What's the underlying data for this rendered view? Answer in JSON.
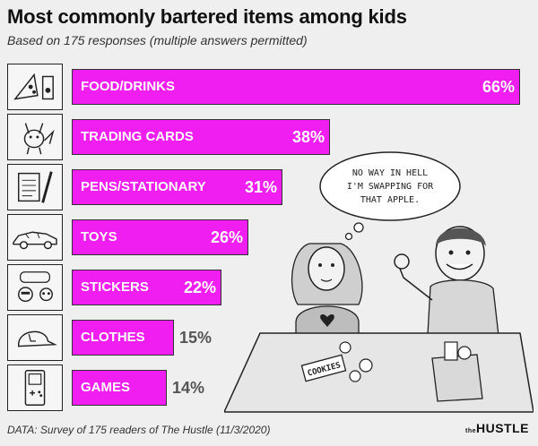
{
  "header": {
    "title": "Most commonly bartered items among kids",
    "subtitle": "Based on 175 responses (multiple answers permitted)"
  },
  "chart_data": {
    "type": "bar",
    "orientation": "horizontal",
    "categories": [
      "FOOD/DRINKS",
      "TRADING CARDS",
      "PENS/STATIONARY",
      "TOYS",
      "STICKERS",
      "CLOTHES",
      "GAMES"
    ],
    "values": [
      66,
      38,
      31,
      26,
      22,
      15,
      14
    ],
    "value_labels": [
      "66%",
      "38%",
      "31%",
      "26%",
      "22%",
      "15%",
      "14%"
    ],
    "unit": "%",
    "bar_color": "#f01ef0",
    "xlim": [
      0,
      66
    ]
  },
  "icons": [
    "pizza-icon",
    "pikachu-card-icon",
    "pen-notepad-icon",
    "toy-car-icon",
    "stickers-icon",
    "cap-icon",
    "gameboy-icon"
  ],
  "illustration": {
    "speech_bubble": [
      "NO WAY IN HELL",
      "I'M SWAPPING FOR",
      "THAT APPLE."
    ],
    "cookie_box_label": "COOKIES"
  },
  "footer": {
    "source": "DATA: Survey of 175 readers of The Hustle (11/3/2020)",
    "brand_small": "the",
    "brand": "HUSTLE"
  }
}
